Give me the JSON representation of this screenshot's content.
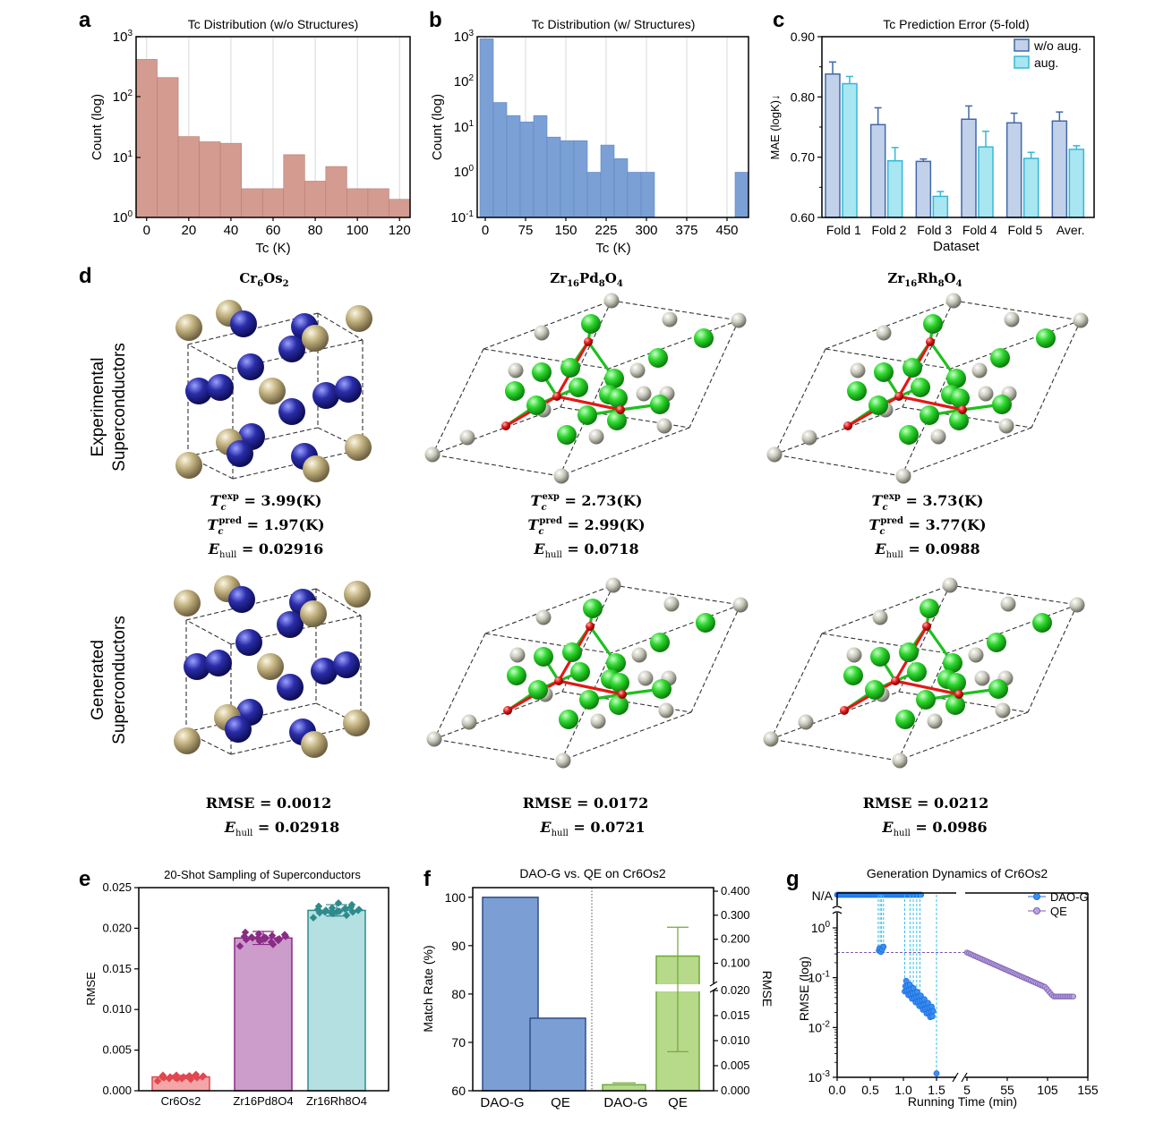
{
  "panel_letters": [
    "a",
    "b",
    "c",
    "d",
    "e",
    "f",
    "g"
  ],
  "colors": {
    "tc_hist_a": "#d49b91",
    "tc_hist_a_edge": "#b87d72",
    "tc_hist_b": "#7ba0d6",
    "tc_hist_b_edge": "#5f86c0",
    "c_woaug_fill": "#c2d1ea",
    "c_woaug_edge": "#4169a8",
    "c_aug_fill": "#a8e6f2",
    "c_aug_edge": "#35b8d4",
    "e_cr": "#f4a5a8",
    "e_cr_edge": "#e0474e",
    "e_zrpd": "#cc9ccb",
    "e_zrpd_edge": "#8a2b86",
    "e_zrrh": "#b4e0e2",
    "e_zrrh_edge": "#2e8a8c",
    "f_bar_blue": "#7b9fd4",
    "f_bar_green": "#b6d98a",
    "f_green_edge": "#6fa83a",
    "g_dao": "#1e6fe0",
    "g_dao_dash": "#35c0e8",
    "g_qe": "#7c5cb0",
    "atom_cr": "#2a2da8",
    "atom_os": "#c2b27f",
    "atom_zr": "#2ed82e",
    "atom_pd": "#c9c9bc",
    "atom_o": "#e21818"
  },
  "chart_data": [
    {
      "panel": "a",
      "type": "bar",
      "title": "Tc Distribution (w/o Structures)",
      "xlabel": "Tc (K)",
      "ylabel": "Count (log)",
      "yscale": "log",
      "ylim": [
        1,
        1000
      ],
      "xlim": [
        -5,
        125
      ],
      "xticks": [
        "0",
        "20",
        "40",
        "60",
        "80",
        "100",
        "120"
      ],
      "yticks": [
        "10^0",
        "10^1",
        "10^2",
        "10^3"
      ],
      "bin_width": 10,
      "bin_starts": [
        -5,
        5,
        15,
        25,
        35,
        45,
        55,
        65,
        75,
        85,
        95,
        105,
        115
      ],
      "values": [
        420,
        210,
        22,
        18,
        17,
        3,
        3,
        11,
        4,
        7,
        3,
        3,
        2
      ]
    },
    {
      "panel": "b",
      "type": "bar",
      "title": "Tc Distribution (w/ Structures)",
      "xlabel": "Tc (K)",
      "ylabel": "Count (log)",
      "yscale": "log",
      "ylim": [
        0.1,
        1000
      ],
      "xlim": [
        -15,
        490
      ],
      "xticks": [
        "0",
        "75",
        "150",
        "225",
        "300",
        "375",
        "450"
      ],
      "yticks": [
        "10^-1",
        "10^0",
        "10^1",
        "10^2",
        "10^3"
      ],
      "bin_width": 25,
      "bin_starts": [
        -10,
        15,
        40,
        65,
        90,
        115,
        140,
        165,
        190,
        215,
        240,
        265,
        290,
        465
      ],
      "values": [
        900,
        35,
        18,
        13,
        18,
        6,
        5,
        5,
        1,
        4,
        2,
        1,
        1,
        1
      ]
    },
    {
      "panel": "c",
      "type": "bar",
      "title": "Tc Prediction Error (5-fold)",
      "xlabel": "Dataset",
      "ylabel": "MAE (logK)↓",
      "ylim": [
        0.6,
        0.9
      ],
      "yticks": [
        "0.60",
        "0.70",
        "0.80",
        "0.90"
      ],
      "categories": [
        "Fold 1",
        "Fold 2",
        "Fold 3",
        "Fold 4",
        "Fold 5",
        "Aver."
      ],
      "legend_position": "top-right",
      "series": [
        {
          "name": "w/o aug.",
          "values": [
            0.838,
            0.754,
            0.693,
            0.763,
            0.757,
            0.76
          ],
          "errors": [
            0.02,
            0.028,
            0.004,
            0.022,
            0.016,
            0.015
          ]
        },
        {
          "name": "aug.",
          "values": [
            0.822,
            0.694,
            0.635,
            0.717,
            0.698,
            0.713
          ],
          "errors": [
            0.012,
            0.022,
            0.008,
            0.026,
            0.01,
            0.006
          ]
        }
      ]
    },
    {
      "panel": "e",
      "type": "bar",
      "title": "20-Shot Sampling of Superconductors",
      "ylabel": "RMSE",
      "ylim": [
        0,
        0.025
      ],
      "yticks": [
        "0.000",
        "0.005",
        "0.010",
        "0.015",
        "0.020",
        "0.025"
      ],
      "categories": [
        "Cr6Os2",
        "Zr16Pd8O4",
        "Zr16Rh8O4"
      ],
      "values": [
        0.0017,
        0.0188,
        0.0222
      ],
      "errors": [
        0.0002,
        0.0008,
        0.0007
      ],
      "points": [
        [
          0.0012,
          0.0014,
          0.0015,
          0.0016,
          0.0016,
          0.0017,
          0.0017,
          0.0018,
          0.0018,
          0.0019,
          0.0019,
          0.002,
          0.0016,
          0.0015,
          0.0017,
          0.0018,
          0.0016,
          0.0017,
          0.0019,
          0.0015
        ],
        [
          0.0178,
          0.018,
          0.0184,
          0.0186,
          0.0187,
          0.0188,
          0.0188,
          0.019,
          0.0191,
          0.0193,
          0.0195,
          0.0185,
          0.0187,
          0.0189,
          0.0192,
          0.0183,
          0.0188,
          0.019,
          0.0186,
          0.0189
        ],
        [
          0.0213,
          0.0216,
          0.0218,
          0.0219,
          0.022,
          0.0221,
          0.0222,
          0.0223,
          0.0224,
          0.0225,
          0.0227,
          0.0229,
          0.0231,
          0.022,
          0.0222,
          0.0224,
          0.0219,
          0.0223,
          0.0226,
          0.0221
        ]
      ]
    },
    {
      "panel": "f",
      "type": "bar",
      "title": "DAO-G vs. QE on Cr6Os2",
      "ylabel": "Match Rate (%)",
      "y2label": "RMSE",
      "ylim": [
        60,
        102
      ],
      "yticks": [
        "60",
        "70",
        "80",
        "90",
        "100"
      ],
      "y2ticks_lower": [
        "0.000",
        "0.005",
        "0.010",
        "0.015",
        "0.020"
      ],
      "y2ticks_upper": [
        "0.100",
        "0.200",
        "0.300",
        "0.400"
      ],
      "categories": [
        "DAO-G",
        "QE",
        "DAO-G",
        "QE"
      ],
      "match_rate": {
        "DAO-G": 100,
        "QE": 75
      },
      "rmse": {
        "DAO-G": 0.0012,
        "QE": 0.13
      },
      "rmse_error": {
        "DAO-G": 0.0001,
        "QE_low": 0.0078,
        "QE_high": 0.25
      }
    },
    {
      "panel": "g",
      "type": "scatter",
      "title": "Generation Dynamics of Cr6Os2",
      "xlabel": "Running Time (min)",
      "ylabel": "RMSE (log)",
      "yscale": "log",
      "ylim": [
        0.001,
        1
      ],
      "xticks_left": [
        "0.0",
        "0.5",
        "1.0",
        "1.5"
      ],
      "xticks_right": [
        "5",
        "55",
        "105",
        "155"
      ],
      "yticks": [
        "10^-3",
        "10^-2",
        "10^-1",
        "10^0",
        "N/A"
      ],
      "legend_position": "top-right",
      "series": [
        {
          "name": "DAO-G",
          "x_range": [
            0.0,
            1.6
          ],
          "final_rmse": 0.0012,
          "na_fraction": "first trials return N/A"
        },
        {
          "name": "QE",
          "x_range": [
            5,
            135
          ],
          "start_rmse": 0.32,
          "end_rmse": 0.042
        }
      ]
    }
  ],
  "panel_d": {
    "materials": [
      "Cr6Os2",
      "Zr16Pd8O4",
      "Zr16Rh8O4"
    ],
    "row_labels": [
      [
        "Experimental",
        "Superconductors"
      ],
      [
        "Generated",
        "Superconductors"
      ]
    ],
    "experimental": [
      {
        "tc_exp": "3.99(K)",
        "tc_pred": "1.97(K)",
        "ehull": "0.02916"
      },
      {
        "tc_exp": "2.73(K)",
        "tc_pred": "2.99(K)",
        "ehull": "0.0718"
      },
      {
        "tc_exp": "3.73(K)",
        "tc_pred": "3.77(K)",
        "ehull": "0.0988"
      }
    ],
    "generated": [
      {
        "rmse": "0.0012",
        "ehull": "0.02918"
      },
      {
        "rmse": "0.0172",
        "ehull": "0.0721"
      },
      {
        "rmse": "0.0212",
        "ehull": "0.0986"
      }
    ]
  }
}
